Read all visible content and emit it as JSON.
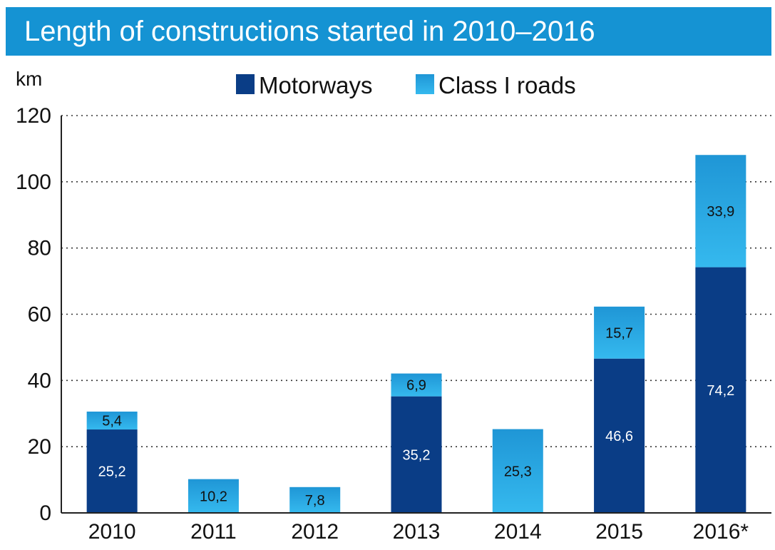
{
  "chart_data": {
    "type": "bar",
    "stacked": true,
    "title": "Length of constructions started in 2010–2016",
    "ylabel": "km",
    "xlabel": "",
    "ylim": [
      0,
      120
    ],
    "yticks": [
      "0",
      "20",
      "40",
      "60",
      "80",
      "100",
      "120"
    ],
    "grid": "horizontal dotted",
    "legend_position": "top",
    "categories": [
      "2010",
      "2011",
      "2012",
      "2013",
      "2014",
      "2015",
      "2016*"
    ],
    "series": [
      {
        "name": "Motorways",
        "color": "#0a3d86",
        "values": [
          25.2,
          0,
          0,
          35.2,
          0,
          46.6,
          74.2
        ],
        "labels": [
          "25,2",
          "",
          "",
          "35,2",
          "",
          "46,6",
          "74,2"
        ]
      },
      {
        "name": "Class I roads",
        "color": "#2aaee8",
        "values": [
          5.4,
          10.2,
          7.8,
          6.9,
          25.3,
          15.7,
          33.9
        ],
        "labels": [
          "5,4",
          "10,2",
          "7,8",
          "6,9",
          "25,3",
          "15,7",
          "33,9"
        ]
      }
    ]
  }
}
